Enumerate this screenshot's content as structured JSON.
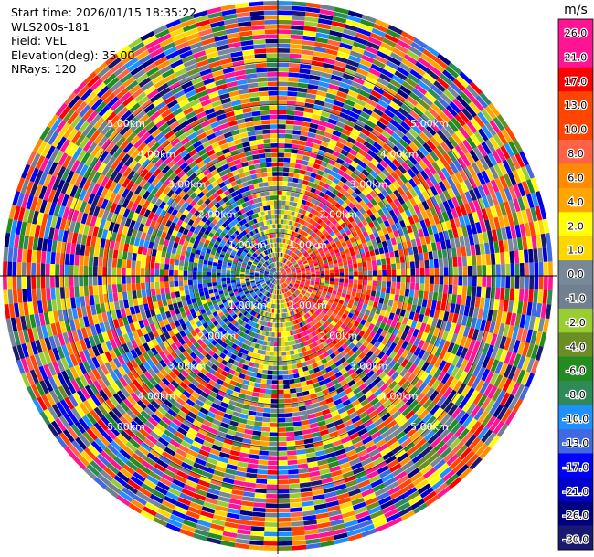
{
  "header": {
    "start_time": "Start time: 2026/01/15 18:35:22",
    "instrument": "WLS200s-181",
    "field": "Field: VEL",
    "elevation": "Elevation(deg): 35.00",
    "nrays": "NRays: 120"
  },
  "colorbar": {
    "unit": "m/s",
    "ticks": [
      "26.0",
      "21.0",
      "17.0",
      "13.0",
      "10.0",
      "8.0",
      "6.0",
      "4.0",
      "2.0",
      "1.0",
      "0.0",
      "-1.0",
      "-2.0",
      "-4.0",
      "-6.0",
      "-8.0",
      "-10.0",
      "-13.0",
      "-17.0",
      "-21.0",
      "-26.0",
      "-30.0"
    ],
    "colors": [
      "#ff1493",
      "#ff1493",
      "#ff0000",
      "#ff4500",
      "#ff4500",
      "#ff6347",
      "#ff8c00",
      "#ffa500",
      "#ffff00",
      "#ffd700",
      "#778899",
      "#708090",
      "#9acd32",
      "#6b8e23",
      "#228b22",
      "#2e8b57",
      "#1e90ff",
      "#4169e1",
      "#0000ff",
      "#0000cd",
      "#000080",
      "#191970"
    ]
  },
  "chart_data": {
    "type": "heatmap",
    "projection": "polar-ppi",
    "field": "VEL",
    "unit": "m/s",
    "nrays": 120,
    "range_km_max": 6.5,
    "range_ring_labels": [
      "1.00km",
      "2.00km",
      "3.00km",
      "4.00km",
      "5.00km"
    ],
    "range_rings_km": [
      1,
      2,
      3,
      4,
      5
    ],
    "value_range": [
      -30.0,
      26.0
    ]
  }
}
